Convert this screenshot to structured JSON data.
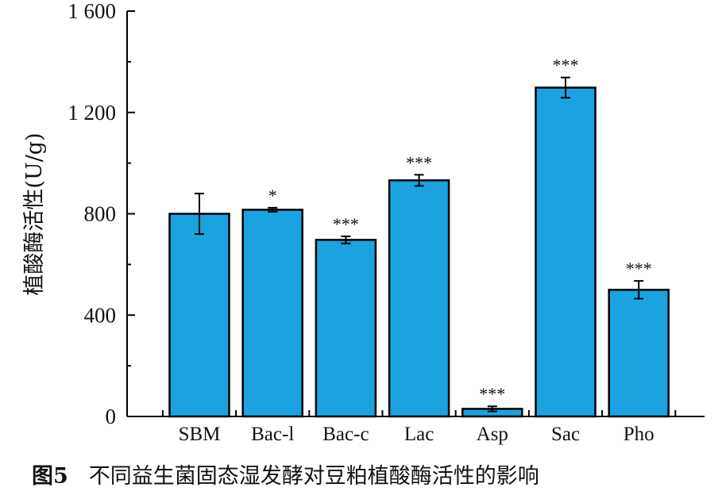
{
  "chart_data": {
    "type": "bar",
    "title": "",
    "ylabel": "植酸酶活性(U/g)",
    "xlabel": "",
    "ylim": [
      0,
      1600
    ],
    "yticks": [
      0,
      400,
      800,
      1200,
      1600
    ],
    "ytick_labels": [
      "0",
      "400",
      "800",
      "1 200",
      "1 600"
    ],
    "categories": [
      "SBM",
      "Bac-l",
      "Bac-c",
      "Lac",
      "Asp",
      "Sac",
      "Pho"
    ],
    "values": [
      800,
      816,
      697,
      932,
      30,
      1298,
      500
    ],
    "errors": [
      80,
      8,
      14,
      22,
      10,
      40,
      35
    ],
    "significance": [
      "",
      "*",
      "***",
      "***",
      "***",
      "***",
      "***"
    ],
    "bar_color": "#1aa3e0",
    "edge_color": "#000000",
    "grid": false
  },
  "caption": {
    "figure_number": "图5",
    "text": "不同益生菌固态湿发酵对豆粕植酸酶活性的影响"
  }
}
